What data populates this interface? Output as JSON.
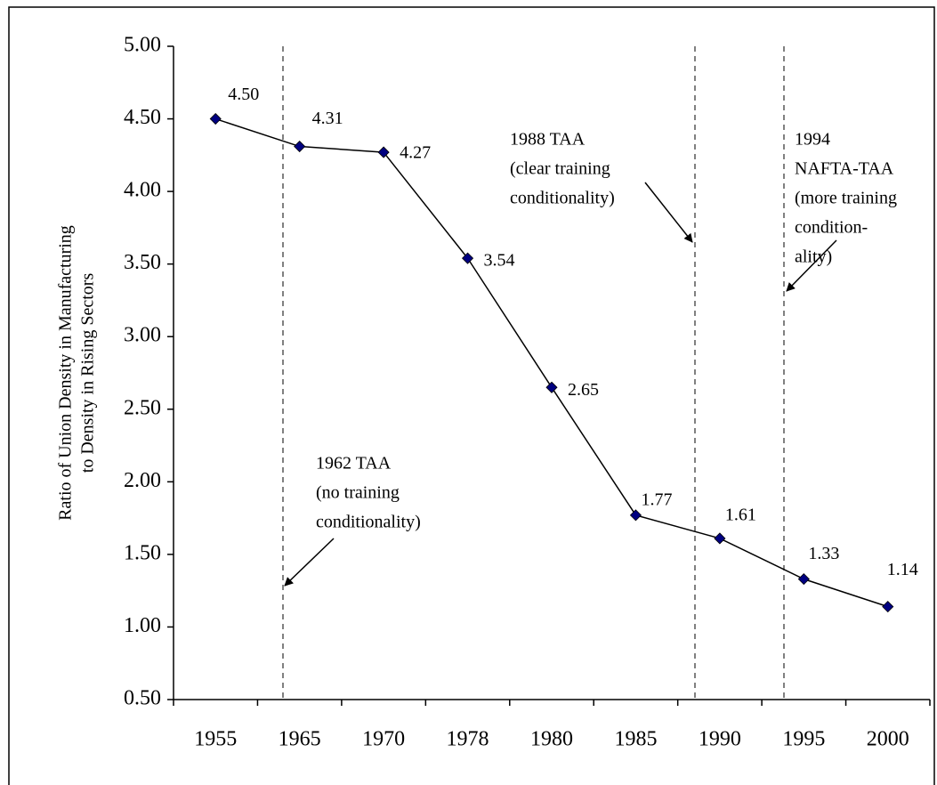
{
  "chart_data": {
    "type": "line",
    "y_label": [
      "Ratio of Union Density in Manufacturing",
      "to Density in Rising Sectors"
    ],
    "categories": [
      "1955",
      "1965",
      "1970",
      "1978",
      "1980",
      "1985",
      "1990",
      "1995",
      "2000"
    ],
    "values": [
      4.5,
      4.31,
      4.27,
      3.54,
      2.65,
      1.77,
      1.61,
      1.33,
      1.14
    ],
    "value_labels": [
      "4.50",
      "4.31",
      "4.27",
      "3.54",
      "2.65",
      "1.77",
      "1.61",
      "1.33",
      "1.14"
    ],
    "color": "#000080",
    "ylim": [
      0.5,
      5
    ],
    "yticks": [
      {
        "value": 0.5,
        "label": "0.50"
      },
      {
        "value": 1,
        "label": "1.00"
      },
      {
        "value": 1.5,
        "label": "1.50"
      },
      {
        "value": 2,
        "label": "2.00"
      },
      {
        "value": 2.5,
        "label": "2.50"
      },
      {
        "value": 3,
        "label": "3.00"
      },
      {
        "value": 3.5,
        "label": "3.50"
      },
      {
        "value": 4,
        "label": "4.00"
      },
      {
        "value": 4.5,
        "label": "4.50"
      },
      {
        "value": 5,
        "label": "5.00"
      }
    ],
    "annotations": [
      {
        "text": [
          "1962 TAA",
          "(no training",
          "conditionality)"
        ]
      },
      {
        "text": [
          "1988 TAA",
          "(clear training",
          "conditionality)"
        ]
      },
      {
        "text": [
          "1994",
          "NAFTA-TAA",
          "(more training",
          "condition-",
          "ality)"
        ]
      }
    ]
  }
}
